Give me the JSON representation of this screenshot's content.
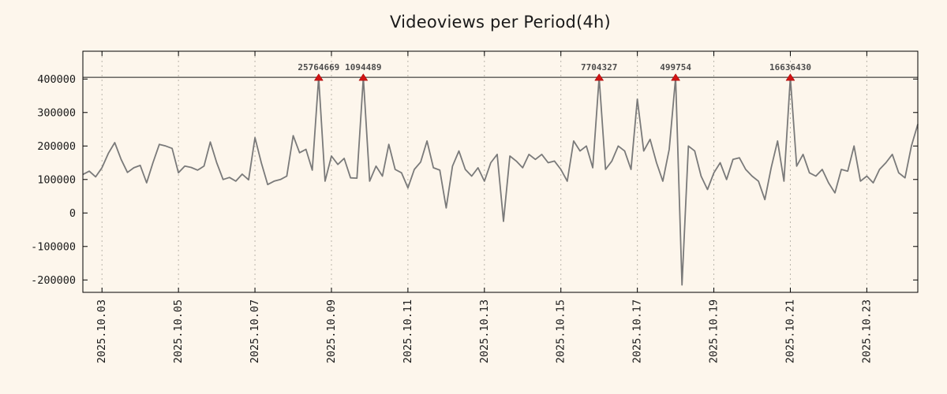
{
  "title": "Videoviews per Period(4h)",
  "chart_data": {
    "type": "line",
    "title": "Videoviews per Period(4h)",
    "period": "4h",
    "x_start": "2025-10-02 12:00",
    "x_step_hours": 4,
    "xlabel": "",
    "ylabel": "",
    "ylim": [
      -237000,
      483000
    ],
    "y_ticks": [
      -200000,
      -100000,
      0,
      100000,
      200000,
      300000,
      400000
    ],
    "x_ticks": [
      {
        "index": 3,
        "label": "2025.10.03"
      },
      {
        "index": 15,
        "label": "2025.10.05"
      },
      {
        "index": 27,
        "label": "2025.10.07"
      },
      {
        "index": 39,
        "label": "2025.10.09"
      },
      {
        "index": 51,
        "label": "2025.10.11"
      },
      {
        "index": 63,
        "label": "2025.10.13"
      },
      {
        "index": 75,
        "label": "2025.10.15"
      },
      {
        "index": 87,
        "label": "2025.10.17"
      },
      {
        "index": 99,
        "label": "2025.10.19"
      },
      {
        "index": 111,
        "label": "2025.10.21"
      },
      {
        "index": 123,
        "label": "2025.10.23"
      }
    ],
    "grid": "vertical-dashed",
    "legend": "none",
    "clip_value": 405000,
    "clipped_points": [
      {
        "index": 37,
        "label": "25764669"
      },
      {
        "index": 44,
        "label": "1094489"
      },
      {
        "index": 81,
        "label": "7704327"
      },
      {
        "index": 93,
        "label": "499754"
      },
      {
        "index": 111,
        "label": "16636430"
      }
    ],
    "line_color": "#7a7a7a",
    "marker_color": "#d01414",
    "background_color": "#fdf6ec",
    "annotation_color": "#4d4d4d",
    "values": [
      115000,
      125000,
      108000,
      135000,
      178000,
      210000,
      160000,
      121000,
      135000,
      142000,
      90000,
      150000,
      205000,
      200000,
      193000,
      120000,
      140000,
      136000,
      128000,
      140000,
      212000,
      150000,
      100000,
      106000,
      95000,
      116000,
      99000,
      225000,
      150000,
      85000,
      95000,
      100000,
      110000,
      231000,
      180000,
      190000,
      128000,
      25764669,
      95000,
      170000,
      145000,
      163000,
      105000,
      104000,
      1094489,
      95000,
      140000,
      110000,
      205000,
      130000,
      120000,
      75000,
      130000,
      152000,
      215000,
      135000,
      128000,
      15000,
      140000,
      185000,
      130000,
      110000,
      135000,
      95000,
      150000,
      175000,
      -25000,
      170000,
      155000,
      135000,
      175000,
      160000,
      175000,
      150000,
      155000,
      130000,
      95000,
      215000,
      185000,
      200000,
      135000,
      7704327,
      130000,
      155000,
      200000,
      185000,
      130000,
      340000,
      185000,
      220000,
      150000,
      95000,
      190000,
      499754,
      -215000,
      200000,
      185000,
      110000,
      70000,
      120000,
      150000,
      100000,
      160000,
      165000,
      130000,
      110000,
      95000,
      40000,
      135000,
      215000,
      95000,
      16636430,
      140000,
      175000,
      120000,
      110000,
      130000,
      90000,
      60000,
      130000,
      125000,
      200000,
      95000,
      110000,
      90000,
      130000,
      150000,
      175000,
      120000,
      105000,
      200000,
      265000
    ]
  }
}
